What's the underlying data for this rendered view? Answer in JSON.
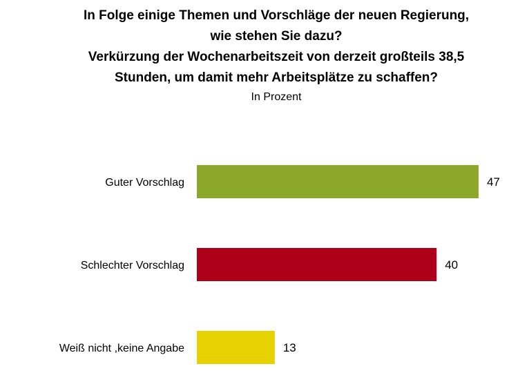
{
  "chart_data": {
    "type": "bar",
    "orientation": "horizontal",
    "title_lines": [
      "In Folge einige Themen und Vorschläge der neuen Regierung,",
      "wie stehen Sie dazu?",
      "Verkürzung der Wochenarbeitszeit von derzeit großteils 38,5",
      "Stunden, um damit mehr Arbeitsplätze zu schaffen?"
    ],
    "subtitle": "In Prozent",
    "categories": [
      "Guter Vorschlag",
      "Schlechter Vorschlag",
      "Weiß nicht ,keine Angabe"
    ],
    "values": [
      47,
      40,
      13
    ],
    "value_labels": [
      "47",
      "40",
      "13"
    ],
    "colors": [
      "#8ca82a",
      "#ad0018",
      "#e6d200"
    ],
    "xlim": [
      0,
      50
    ],
    "grid": false,
    "legend": "none"
  }
}
